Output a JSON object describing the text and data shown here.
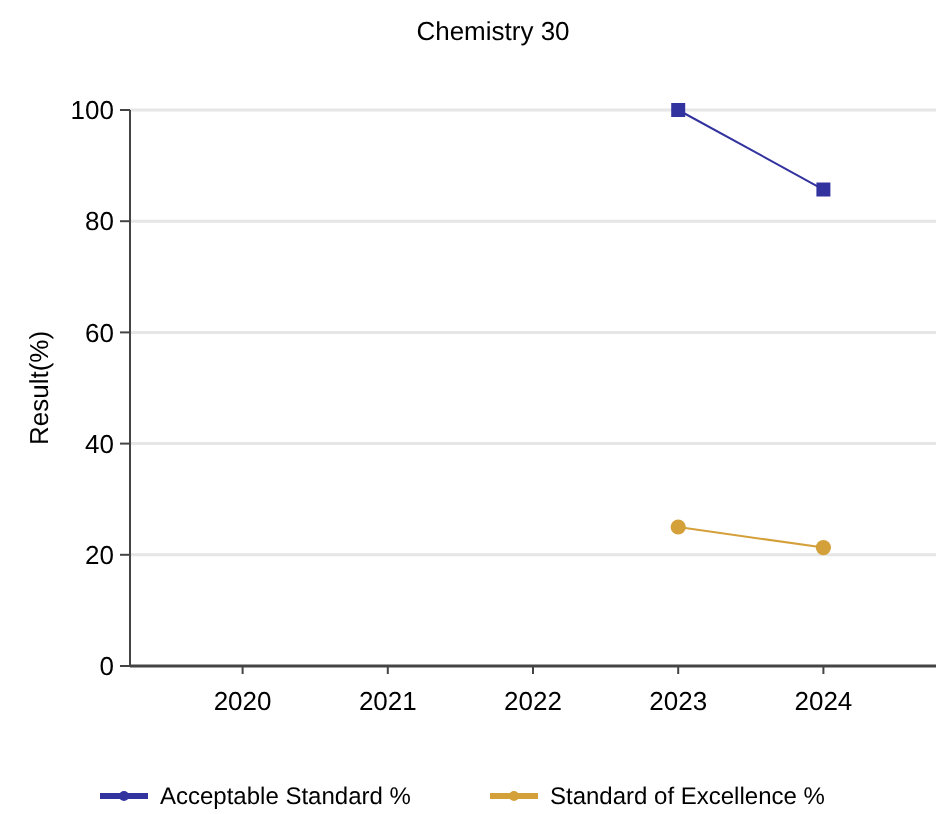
{
  "chart_data": {
    "type": "line",
    "title": "Chemistry 30",
    "ylabel": "Result(%)",
    "categories": [
      "2020",
      "2021",
      "2022",
      "2023",
      "2024"
    ],
    "series": [
      {
        "name": "Acceptable Standard %",
        "color": "#3333a0",
        "marker": "square",
        "values": [
          null,
          null,
          null,
          100,
          85.7
        ]
      },
      {
        "name": "Standard of Excellence %",
        "color": "#d4a03a",
        "marker": "circle",
        "values": [
          null,
          null,
          null,
          25,
          21.3
        ]
      }
    ],
    "ylim": [
      0,
      100
    ],
    "yticks": [
      0,
      20,
      40,
      60,
      80,
      100
    ],
    "grid": "y",
    "legend": "bottom"
  }
}
